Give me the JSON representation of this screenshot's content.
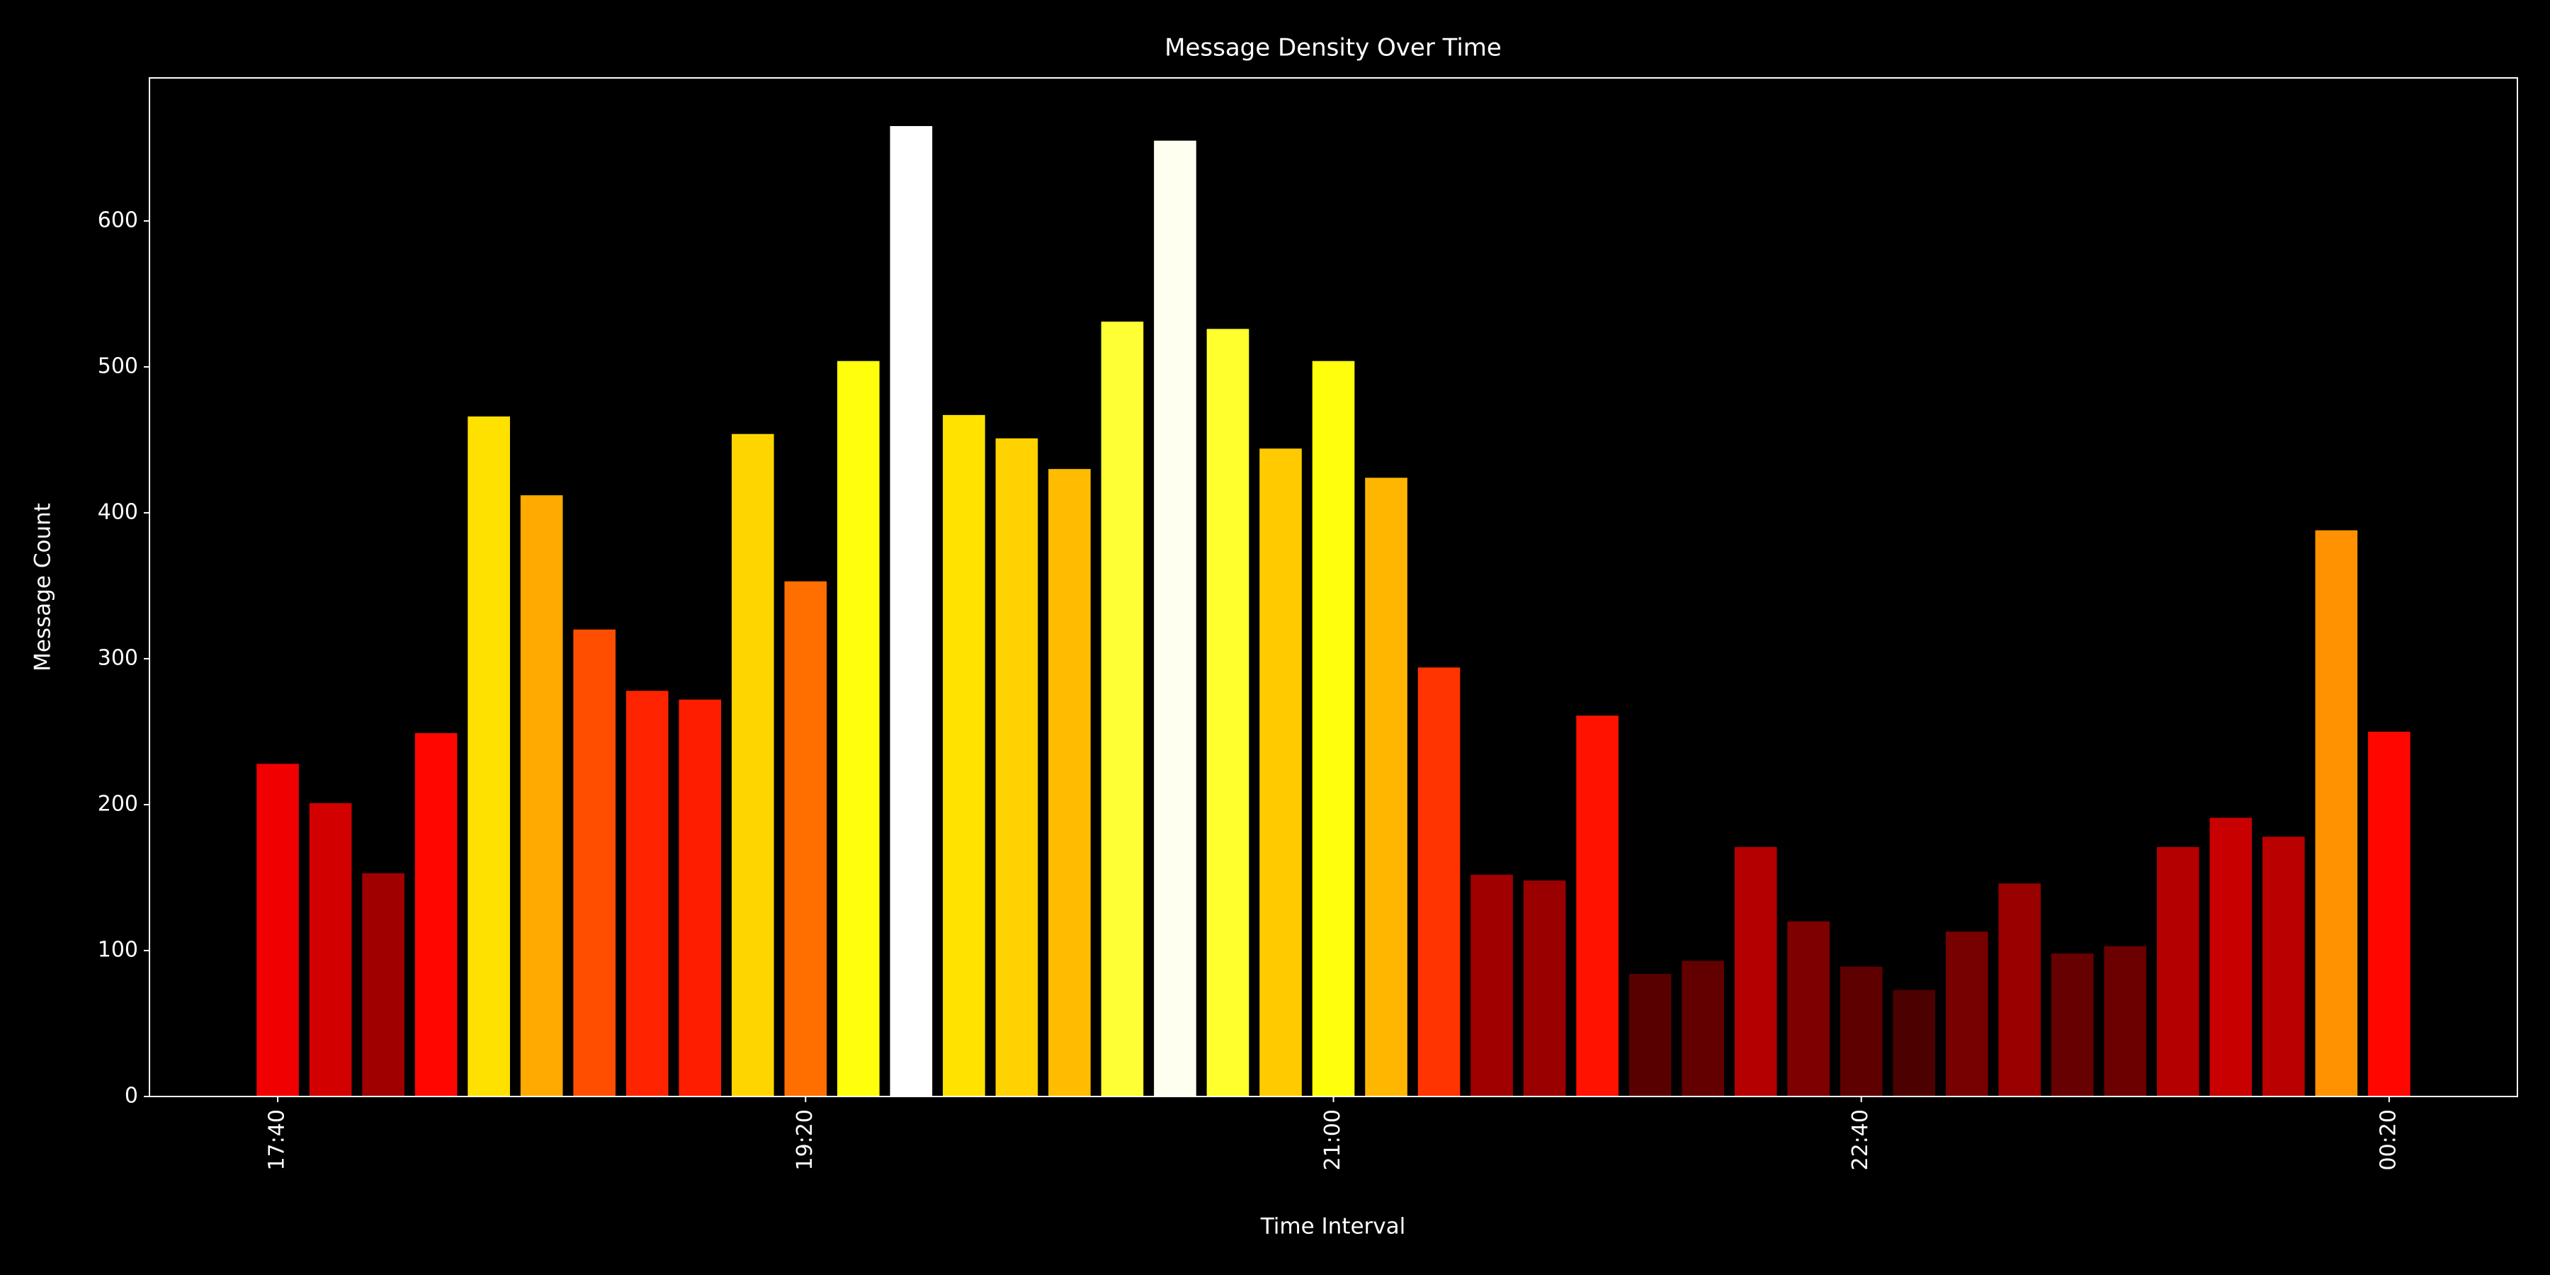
{
  "chart_data": {
    "type": "bar",
    "title": "Message Density Over Time",
    "xlabel": "Time Interval",
    "ylabel": "Message Count",
    "categories": [
      "17:40",
      null,
      null,
      null,
      null,
      null,
      null,
      null,
      null,
      null,
      "19:20",
      null,
      null,
      null,
      null,
      null,
      null,
      null,
      null,
      null,
      "21:00",
      null,
      null,
      null,
      null,
      null,
      null,
      null,
      null,
      null,
      "22:40",
      null,
      null,
      null,
      null,
      null,
      null,
      null,
      null,
      null,
      "00:20"
    ],
    "values": [
      228,
      201,
      153,
      249,
      466,
      412,
      320,
      278,
      272,
      454,
      353,
      504,
      665,
      467,
      451,
      430,
      531,
      655,
      526,
      444,
      504,
      424,
      294,
      152,
      148,
      261,
      84,
      93,
      171,
      120,
      89,
      73,
      113,
      146,
      98,
      103,
      171,
      191,
      178,
      388,
      250
    ],
    "colormap": "hot",
    "ylim": [
      0,
      698
    ],
    "yticks": [
      0,
      100,
      200,
      300,
      400,
      500,
      600
    ]
  }
}
